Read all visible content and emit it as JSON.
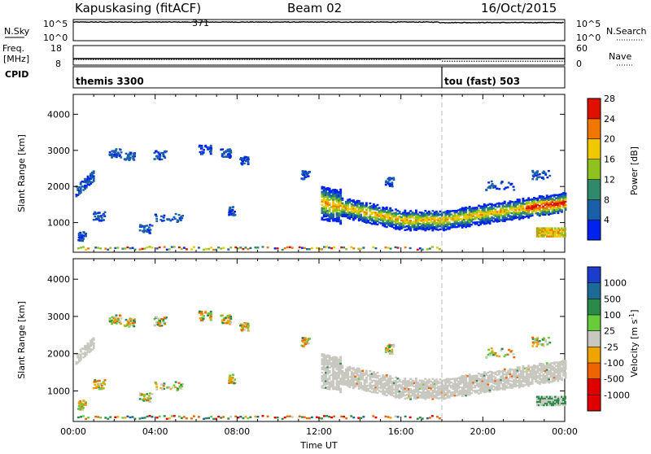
{
  "header": {
    "station": "Kapuskasing (fitACF)",
    "beam": "Beam 02",
    "date": "16/Oct/2015"
  },
  "nsky_panel": {
    "left_label": "N.Sky",
    "right_label": "N.Search",
    "left_ticks": [
      "10^5",
      "10^0"
    ],
    "right_ticks": [
      "10^5",
      "10^0"
    ],
    "ylim_log10": [
      0,
      5
    ],
    "nsky_level_log10": 4.4,
    "marker_text": "371"
  },
  "freq_panel": {
    "left_label_top": "Freq.",
    "left_label_bottom": "[MHz]",
    "right_label": "Nave",
    "left_ticks": [
      "18",
      "8"
    ],
    "right_ticks": [
      "60",
      "0"
    ],
    "freq_segments": [
      {
        "start_hour": 0.0,
        "end_hour": 18.0,
        "freq_mhz": 10.9
      },
      {
        "start_hour": 18.0,
        "end_hour": 24.0,
        "freq_mhz": 10.0
      }
    ],
    "nave_level": 20
  },
  "cpid_panel": {
    "label": "CPID",
    "segments": [
      {
        "start_hour": 0.0,
        "end_hour": 18.0,
        "name": "themis 3300"
      },
      {
        "start_hour": 18.0,
        "end_hour": 24.0,
        "name": "tou (fast) 503"
      }
    ]
  },
  "chart_data": [
    {
      "type": "heatmap",
      "name": "power",
      "title": "",
      "xlabel": "",
      "ylabel": "Slant Range [km]",
      "xlim_hours": [
        0,
        24
      ],
      "ylim_km": [
        180,
        4550
      ],
      "y_ticks": [
        1000,
        2000,
        3000,
        4000
      ],
      "colorbar": {
        "label": "Power [dB]",
        "ticks": [
          "4",
          "8",
          "12",
          "16",
          "20",
          "24",
          "28"
        ],
        "colors": [
          "#0022ee",
          "#1a60a8",
          "#2f8a6b",
          "#8ec21f",
          "#f0c800",
          "#f07800",
          "#e01000"
        ]
      },
      "regions": [
        {
          "t0": 12.1,
          "t1": 24.0,
          "feature": "main echo band",
          "center_start_km": 1550,
          "center_min_km": 1050,
          "center_end_km": 1550,
          "power_db_peak": 22
        },
        {
          "t0": 0.1,
          "t1": 0.9,
          "feature": "early echoes",
          "range_km": [
            1700,
            2300
          ],
          "power_db_peak": 8
        },
        {
          "t0": 22.6,
          "t1": 24.0,
          "feature": "near range patch",
          "range_km": [
            600,
            850
          ],
          "power_db_peak": 20
        }
      ]
    },
    {
      "type": "heatmap",
      "name": "velocity",
      "title": "",
      "xlabel": "Time UT",
      "ylabel": "Slant Range [km]",
      "xlim_hours": [
        0,
        24
      ],
      "x_ticks": [
        "00:00",
        "04:00",
        "08:00",
        "12:00",
        "16:00",
        "20:00",
        "00:00"
      ],
      "ylim_km": [
        180,
        4550
      ],
      "y_ticks": [
        1000,
        2000,
        3000,
        4000
      ],
      "colorbar": {
        "label": "Velocity [m s",
        "label_sup": "-1",
        "label_end": "]",
        "ticks": [
          "1000",
          "500",
          "100",
          "25",
          "-25",
          "-100",
          "-500",
          "-1000"
        ],
        "colors": [
          "#1c3ccc",
          "#1c6a98",
          "#2b8a4a",
          "#68cc3a",
          "#c8c8c0",
          "#f0a400",
          "#f06400",
          "#e00000",
          "#e00000"
        ]
      },
      "dominant_velocity_ms": [
        -25,
        25
      ]
    }
  ]
}
